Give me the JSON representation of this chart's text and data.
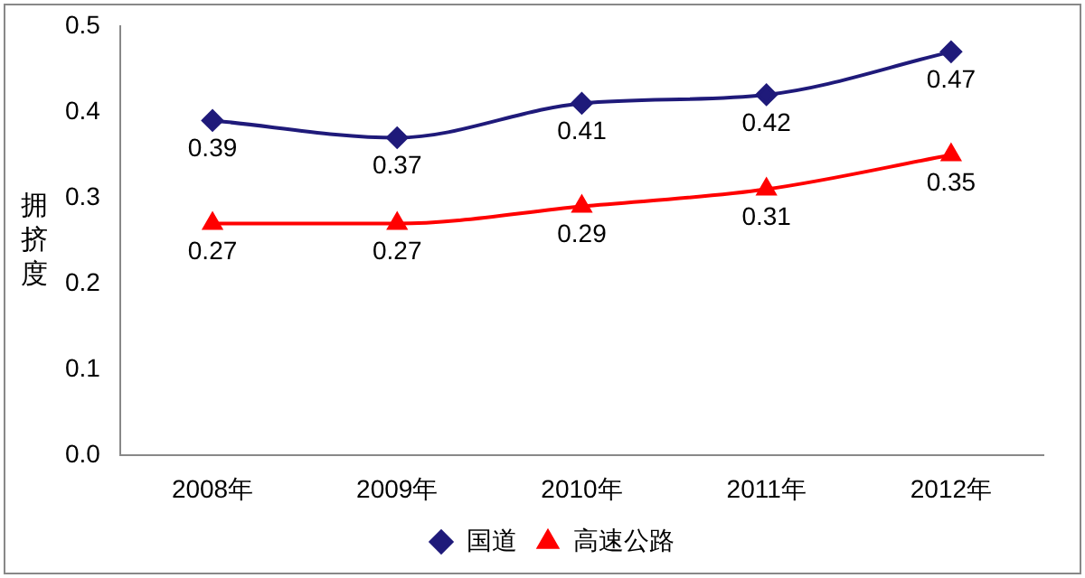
{
  "chart_data": {
    "type": "line",
    "ylabel": "拥挤度",
    "categories": [
      "2008年",
      "2009年",
      "2010年",
      "2011年",
      "2012年"
    ],
    "series": [
      {
        "name": "国道",
        "color": "#1f1a7a",
        "marker": "diamond",
        "values": [
          0.39,
          0.37,
          0.41,
          0.42,
          0.47
        ]
      },
      {
        "name": "高速公路",
        "color": "#ff0000",
        "marker": "triangle",
        "values": [
          0.27,
          0.27,
          0.29,
          0.31,
          0.35
        ]
      }
    ],
    "ylim": [
      0,
      0.5
    ],
    "yticks": [
      {
        "value": 0,
        "label": "0.0"
      },
      0.1,
      0.2,
      0.3,
      0.4,
      0.5
    ],
    "grid": false,
    "legend": "bottom",
    "data_labels": true
  }
}
